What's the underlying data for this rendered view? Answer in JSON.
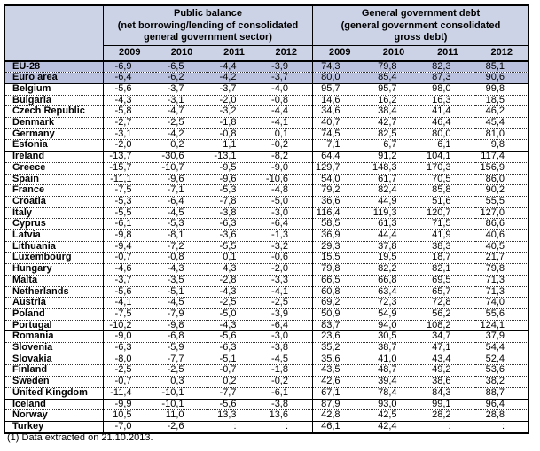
{
  "chart_data": {
    "type": "table",
    "column_groups": [
      {
        "title": "Public balance\n(net borrowing/lending of consolidated\ngeneral government sector)",
        "years": [
          "2009",
          "2010",
          "2011",
          "2012"
        ]
      },
      {
        "title": "General government debt\n(general government consolidated\ngross debt)",
        "years": [
          "2009",
          "2010",
          "2011",
          "2012"
        ]
      }
    ],
    "unavailable_symbol": ":",
    "rows": [
      {
        "name": "EU-28",
        "balance": [
          "-6,9",
          "-6,5",
          "-4,4",
          "-3,9"
        ],
        "debt": [
          "74,3",
          "79,8",
          "82,3",
          "85,1"
        ],
        "highlight": true,
        "group_end": false
      },
      {
        "name": "Euro area",
        "balance": [
          "-6,4",
          "-6,2",
          "-4,2",
          "-3,7"
        ],
        "debt": [
          "80,0",
          "85,4",
          "87,3",
          "90,6"
        ],
        "highlight": true,
        "group_end": true
      },
      {
        "name": "Belgium",
        "balance": [
          "-5,6",
          "-3,7",
          "-3,7",
          "-4,0"
        ],
        "debt": [
          "95,7",
          "95,7",
          "98,0",
          "99,8"
        ],
        "highlight": false,
        "group_end": false
      },
      {
        "name": "Bulgaria",
        "balance": [
          "-4,3",
          "-3,1",
          "-2,0",
          "-0,8"
        ],
        "debt": [
          "14,6",
          "16,2",
          "16,3",
          "18,5"
        ],
        "highlight": false,
        "group_end": false
      },
      {
        "name": "Czech Republic",
        "balance": [
          "-5,8",
          "-4,7",
          "-3,2",
          "-4,4"
        ],
        "debt": [
          "34,6",
          "38,4",
          "41,4",
          "46,2"
        ],
        "highlight": false,
        "group_end": false
      },
      {
        "name": "Denmark",
        "balance": [
          "-2,7",
          "-2,5",
          "-1,8",
          "-4,1"
        ],
        "debt": [
          "40,7",
          "42,7",
          "46,4",
          "45,4"
        ],
        "highlight": false,
        "group_end": false
      },
      {
        "name": "Germany",
        "balance": [
          "-3,1",
          "-4,2",
          "-0,8",
          "0,1"
        ],
        "debt": [
          "74,5",
          "82,5",
          "80,0",
          "81,0"
        ],
        "highlight": false,
        "group_end": false
      },
      {
        "name": "Estonia",
        "balance": [
          "-2,0",
          "0,2",
          "1,1",
          "-0,2"
        ],
        "debt": [
          "7,1",
          "6,7",
          "6,1",
          "9,8"
        ],
        "highlight": false,
        "group_end": true
      },
      {
        "name": "Ireland",
        "balance": [
          "-13,7",
          "-30,6",
          "-13,1",
          "-8,2"
        ],
        "debt": [
          "64,4",
          "91,2",
          "104,1",
          "117,4"
        ],
        "highlight": false,
        "group_end": false
      },
      {
        "name": "Greece",
        "balance": [
          "-15,7",
          "-10,7",
          "-9,5",
          "-9,0"
        ],
        "debt": [
          "129,7",
          "148,3",
          "170,3",
          "156,9"
        ],
        "highlight": false,
        "group_end": false
      },
      {
        "name": "Spain",
        "balance": [
          "-11,1",
          "-9,6",
          "-9,6",
          "-10,6"
        ],
        "debt": [
          "54,0",
          "61,7",
          "70,5",
          "86,0"
        ],
        "highlight": false,
        "group_end": false
      },
      {
        "name": "France",
        "balance": [
          "-7,5",
          "-7,1",
          "-5,3",
          "-4,8"
        ],
        "debt": [
          "79,2",
          "82,4",
          "85,8",
          "90,2"
        ],
        "highlight": false,
        "group_end": false
      },
      {
        "name": "Croatia",
        "balance": [
          "-5,3",
          "-6,4",
          "-7,8",
          "-5,0"
        ],
        "debt": [
          "36,6",
          "44,9",
          "51,6",
          "55,5"
        ],
        "highlight": false,
        "group_end": false
      },
      {
        "name": "Italy",
        "balance": [
          "-5,5",
          "-4,5",
          "-3,8",
          "-3,0"
        ],
        "debt": [
          "116,4",
          "119,3",
          "120,7",
          "127,0"
        ],
        "highlight": false,
        "group_end": false
      },
      {
        "name": "Cyprus",
        "balance": [
          "-6,1",
          "-5,3",
          "-6,3",
          "-6,4"
        ],
        "debt": [
          "58,5",
          "61,3",
          "71,5",
          "86,6"
        ],
        "highlight": false,
        "group_end": false
      },
      {
        "name": "Latvia",
        "balance": [
          "-9,8",
          "-8,1",
          "-3,6",
          "-1,3"
        ],
        "debt": [
          "36,9",
          "44,4",
          "41,9",
          "40,6"
        ],
        "highlight": false,
        "group_end": false
      },
      {
        "name": "Lithuania",
        "balance": [
          "-9,4",
          "-7,2",
          "-5,5",
          "-3,2"
        ],
        "debt": [
          "29,3",
          "37,8",
          "38,3",
          "40,5"
        ],
        "highlight": false,
        "group_end": false
      },
      {
        "name": "Luxembourg",
        "balance": [
          "-0,7",
          "-0,8",
          "0,1",
          "-0,6"
        ],
        "debt": [
          "15,5",
          "19,5",
          "18,7",
          "21,7"
        ],
        "highlight": false,
        "group_end": false
      },
      {
        "name": "Hungary",
        "balance": [
          "-4,6",
          "-4,3",
          "4,3",
          "-2,0"
        ],
        "debt": [
          "79,8",
          "82,2",
          "82,1",
          "79,8"
        ],
        "highlight": false,
        "group_end": false
      },
      {
        "name": "Malta",
        "balance": [
          "-3,7",
          "-3,5",
          "-2,8",
          "-3,3"
        ],
        "debt": [
          "66,5",
          "66,8",
          "69,5",
          "71,3"
        ],
        "highlight": false,
        "group_end": false
      },
      {
        "name": "Netherlands",
        "balance": [
          "-5,6",
          "-5,1",
          "-4,3",
          "-4,1"
        ],
        "debt": [
          "60,8",
          "63,4",
          "65,7",
          "71,3"
        ],
        "highlight": false,
        "group_end": false
      },
      {
        "name": "Austria",
        "balance": [
          "-4,1",
          "-4,5",
          "-2,5",
          "-2,5"
        ],
        "debt": [
          "69,2",
          "72,3",
          "72,8",
          "74,0"
        ],
        "highlight": false,
        "group_end": false
      },
      {
        "name": "Poland",
        "balance": [
          "-7,5",
          "-7,9",
          "-5,0",
          "-3,9"
        ],
        "debt": [
          "50,9",
          "54,9",
          "56,2",
          "55,6"
        ],
        "highlight": false,
        "group_end": false
      },
      {
        "name": "Portugal",
        "balance": [
          "-10,2",
          "-9,8",
          "-4,3",
          "-6,4"
        ],
        "debt": [
          "83,7",
          "94,0",
          "108,2",
          "124,1"
        ],
        "highlight": false,
        "group_end": true
      },
      {
        "name": "Romania",
        "balance": [
          "-9,0",
          "-6,8",
          "-5,6",
          "-3,0"
        ],
        "debt": [
          "23,6",
          "30,5",
          "34,7",
          "37,9"
        ],
        "highlight": false,
        "group_end": false
      },
      {
        "name": "Slovenia",
        "balance": [
          "-6,3",
          "-5,9",
          "-6,3",
          "-3,8"
        ],
        "debt": [
          "35,2",
          "38,7",
          "47,1",
          "54,4"
        ],
        "highlight": false,
        "group_end": false
      },
      {
        "name": "Slovakia",
        "balance": [
          "-8,0",
          "-7,7",
          "-5,1",
          "-4,5"
        ],
        "debt": [
          "35,6",
          "41,0",
          "43,4",
          "52,4"
        ],
        "highlight": false,
        "group_end": false
      },
      {
        "name": "Finland",
        "balance": [
          "-2,5",
          "-2,5",
          "-0,7",
          "-1,8"
        ],
        "debt": [
          "43,5",
          "48,7",
          "49,2",
          "53,6"
        ],
        "highlight": false,
        "group_end": false
      },
      {
        "name": "Sweden",
        "balance": [
          "-0,7",
          "0,3",
          "0,2",
          "-0,2"
        ],
        "debt": [
          "42,6",
          "39,4",
          "38,6",
          "38,2"
        ],
        "highlight": false,
        "group_end": false
      },
      {
        "name": "United Kingdom",
        "balance": [
          "-11,4",
          "-10,1",
          "-7,7",
          "-6,1"
        ],
        "debt": [
          "67,1",
          "78,4",
          "84,3",
          "88,7"
        ],
        "highlight": false,
        "group_end": true
      },
      {
        "name": "Iceland",
        "balance": [
          "-9,9",
          "-10,1",
          "-5,6",
          "-3,8"
        ],
        "debt": [
          "87,9",
          "93,0",
          "99,1",
          "96,4"
        ],
        "highlight": false,
        "group_end": false
      },
      {
        "name": "Norway",
        "balance": [
          "10,5",
          "11,0",
          "13,3",
          "13,6"
        ],
        "debt": [
          "42,8",
          "42,5",
          "28,2",
          "28,8"
        ],
        "highlight": false,
        "group_end": true
      },
      {
        "name": "Turkey",
        "balance": [
          "-7,0",
          "-2,6",
          ":",
          ":"
        ],
        "debt": [
          "46,1",
          "42,4",
          ":",
          ":"
        ],
        "highlight": false,
        "group_end": false
      }
    ]
  },
  "footnote": "(1) Data extracted on 21.10.2013.",
  "colors": {
    "header_bg": "#ccd3e6",
    "highlight_row_bg": "#b9c1de"
  }
}
